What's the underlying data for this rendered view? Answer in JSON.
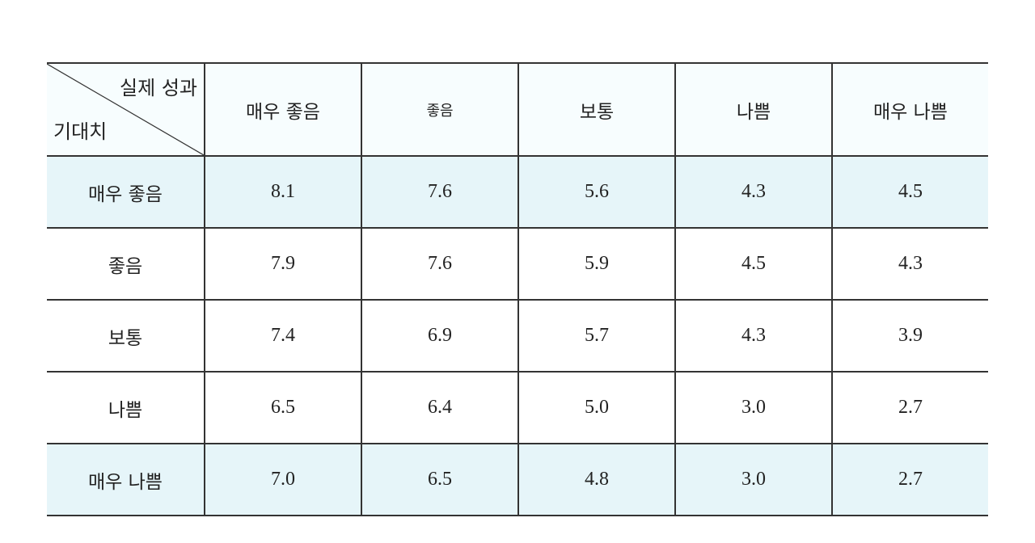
{
  "table": {
    "corner": {
      "column_axis_label": "실제 성과",
      "row_axis_label": "기대치"
    },
    "columns": [
      "매우 좋음",
      "좋음",
      "보통",
      "나쁨",
      "매우 나쁨"
    ],
    "rows": [
      {
        "label": "매우 좋음",
        "values": [
          "8.1",
          "7.6",
          "5.6",
          "4.3",
          "4.5"
        ]
      },
      {
        "label": "좋음",
        "values": [
          "7.9",
          "7.6",
          "5.9",
          "4.5",
          "4.3"
        ]
      },
      {
        "label": "보통",
        "values": [
          "7.4",
          "6.9",
          "5.7",
          "4.3",
          "3.9"
        ]
      },
      {
        "label": "나쁨",
        "values": [
          "6.5",
          "6.4",
          "5.0",
          "3.0",
          "2.7"
        ]
      },
      {
        "label": "매우 나쁨",
        "values": [
          "7.0",
          "6.5",
          "4.8",
          "3.0",
          "2.7"
        ]
      }
    ],
    "colors": {
      "header_bg": "#f7fdfe",
      "highlight_row_bg": "#e6f5f9",
      "border": "#333333"
    }
  }
}
